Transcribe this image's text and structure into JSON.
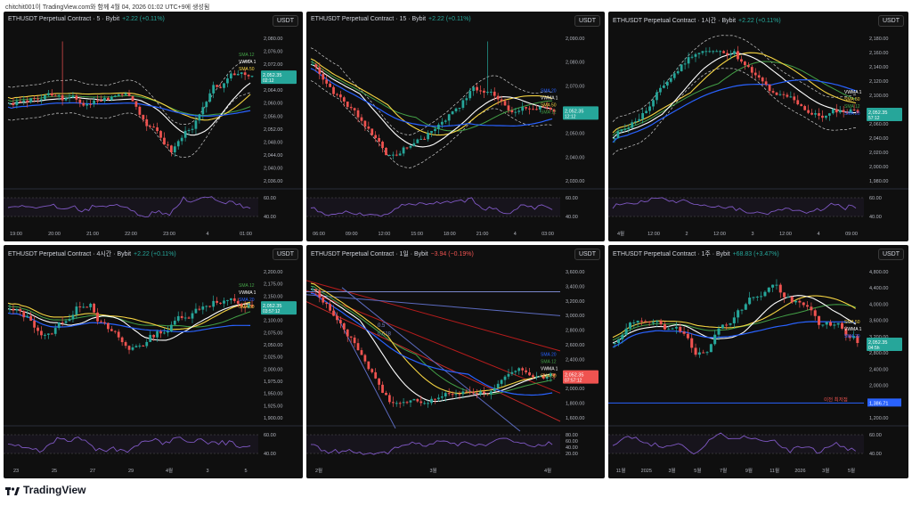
{
  "caption": "chitchit001이 TradingView.com와 함께 4월 04, 2026 01:02 UTC+9에 생성됨",
  "brand": "TradingView",
  "colors": {
    "up": "#26a69a",
    "down": "#ef5350",
    "sma20": "#2962ff",
    "sma50": "#f5d442",
    "vwma": "#ffffff",
    "sma120": "#43a047",
    "rsi": "#7e57c2",
    "bb": "#cccccc",
    "bg": "#0f0f0f"
  },
  "panels": [
    {
      "title": "ETHUSDT Perpetual Contract · 5 · Bybit",
      "change": "+2.22 (+0.11%)",
      "change_dir": "up",
      "currency": "USDT",
      "yticks": [
        "2,080.00",
        "2,076.00",
        "2,072.00",
        "2,068.00",
        "2,064.00",
        "2,060.00",
        "2,056.00",
        "2,052.00",
        "2,048.00",
        "2,044.00",
        "2,040.00",
        "2,036.00"
      ],
      "xticks": [
        "19:00",
        "20:00",
        "21:00",
        "22:00",
        "23:00",
        "4",
        "01:00"
      ],
      "rsi_ticks": [
        "60.00",
        "40.00"
      ],
      "legend": [
        {
          "label": "SMA 12",
          "color": "#43a047"
        },
        {
          "label": "VWMA 1",
          "color": "#ffffff"
        },
        {
          "label": "SMA 50",
          "color": "#f5d442"
        }
      ],
      "price_label": "2,052.35",
      "price_time": "02:12"
    },
    {
      "title": "ETHUSDT Perpetual Contract · 15 · Bybit",
      "change": "+2.22 (+0.11%)",
      "change_dir": "up",
      "currency": "USDT",
      "yticks": [
        "2,090.00",
        "2,080.00",
        "2,070.00",
        "2,060.00",
        "2,050.00",
        "2,040.00",
        "2,030.00"
      ],
      "xticks": [
        "06:00",
        "09:00",
        "12:00",
        "15:00",
        "18:00",
        "21:00",
        "4",
        "03:00"
      ],
      "rsi_ticks": [
        "60.00",
        "40.00"
      ],
      "legend": [
        {
          "label": "SMA 20",
          "color": "#2962ff"
        },
        {
          "label": "VWMA 1",
          "color": "#ffffff"
        },
        {
          "label": "SMA 50",
          "color": "#f5d442"
        },
        {
          "label": "SMA 12",
          "color": "#43a047"
        }
      ],
      "price_label": "2,052.35",
      "price_time": "12:12"
    },
    {
      "title": "ETHUSDT Perpetual Contract · 1시간 · Bybit",
      "change": "+2.22 (+0.11%)",
      "change_dir": "up",
      "currency": "USDT",
      "yticks": [
        "2,180.00",
        "2,160.00",
        "2,140.00",
        "2,120.00",
        "2,100.00",
        "2,080.00",
        "2,060.00",
        "2,040.00",
        "2,020.00",
        "2,000.00",
        "1,980.00"
      ],
      "xticks": [
        "4월",
        "12:00",
        "2",
        "12:00",
        "3",
        "12:00",
        "4",
        "09:00"
      ],
      "rsi_ticks": [
        "60.00",
        "40.00"
      ],
      "legend": [
        {
          "label": "VWMA 1",
          "color": "#ffffff"
        },
        {
          "label": "SMA 50",
          "color": "#f5d442"
        },
        {
          "label": "SMA 12",
          "color": "#43a047"
        },
        {
          "label": "SMA 20",
          "color": "#2962ff"
        }
      ],
      "price_label": "2,052.35",
      "price_time": "57:12"
    },
    {
      "title": "ETHUSDT Perpetual Contract · 4시간 · Bybit",
      "change": "+2.22 (+0.11%)",
      "change_dir": "up",
      "currency": "USDT",
      "yticks": [
        "2,200.00",
        "2,175.00",
        "2,150.00",
        "2,125.00",
        "2,100.00",
        "2,075.00",
        "2,050.00",
        "2,025.00",
        "2,000.00",
        "1,975.00",
        "1,950.00",
        "1,925.00",
        "1,900.00"
      ],
      "xticks": [
        "23",
        "25",
        "27",
        "29",
        "4월",
        "3",
        "5"
      ],
      "rsi_ticks": [
        "60.00",
        "40.00"
      ],
      "legend": [
        {
          "label": "SMA 12",
          "color": "#43a047"
        },
        {
          "label": "VWMA 1",
          "color": "#ffffff"
        },
        {
          "label": "SMA 20",
          "color": "#2962ff"
        },
        {
          "label": "SMA 50",
          "color": "#f5d442"
        }
      ],
      "price_label": "2,052.35",
      "price_time": "03:57:12"
    },
    {
      "title": "ETHUSDT Perpetual Contract · 1일 · Bybit",
      "change": "−3.94 (−0.19%)",
      "change_dir": "down",
      "currency": "USDT",
      "yticks": [
        "3,600.00",
        "3,400.00",
        "3,200.00",
        "3,000.00",
        "2,800.00",
        "2,600.00",
        "2,400.00",
        "2,200.00",
        "2,000.00",
        "1,800.00",
        "1,600.00"
      ],
      "xticks": [
        "2월",
        "3월",
        "4월"
      ],
      "rsi_ticks": [
        "80.00",
        "60.00",
        "40.00",
        "20.00"
      ],
      "legend": [
        {
          "label": "SMA 20",
          "color": "#2962ff"
        },
        {
          "label": "SMA 12",
          "color": "#43a047"
        },
        {
          "label": "VWMA 1",
          "color": "#ffffff"
        },
        {
          "label": "SMA 50",
          "color": "#f5d442"
        }
      ],
      "fib_labels": [
        "0.5",
        "0.618"
      ],
      "price_label": "2,052.35",
      "price_time": "07:57:12"
    },
    {
      "title": "ETHUSDT Perpetual Contract · 1주 · Bybit",
      "change": "+68.83 (+3.47%)",
      "change_dir": "up",
      "currency": "USDT",
      "yticks": [
        "4,800.00",
        "4,400.00",
        "4,000.00",
        "3,600.00",
        "3,200.00",
        "2,800.00",
        "2,400.00",
        "2,000.00",
        "1,600.00",
        "1,200.00"
      ],
      "xticks": [
        "11월",
        "2025",
        "3월",
        "5월",
        "7월",
        "9월",
        "11월",
        "2026",
        "3월",
        "5월"
      ],
      "rsi_ticks": [
        "60.00",
        "40.00"
      ],
      "legend": [
        {
          "label": "SMA 50",
          "color": "#f5d442"
        },
        {
          "label": "VWMA 1",
          "color": "#ffffff"
        },
        {
          "label": "SMA 20",
          "color": "#2962ff"
        }
      ],
      "low_label": "이전 최저점",
      "low_price": "1,386.71",
      "price_label": "2,052.35",
      "price_time": "04:5h"
    }
  ]
}
